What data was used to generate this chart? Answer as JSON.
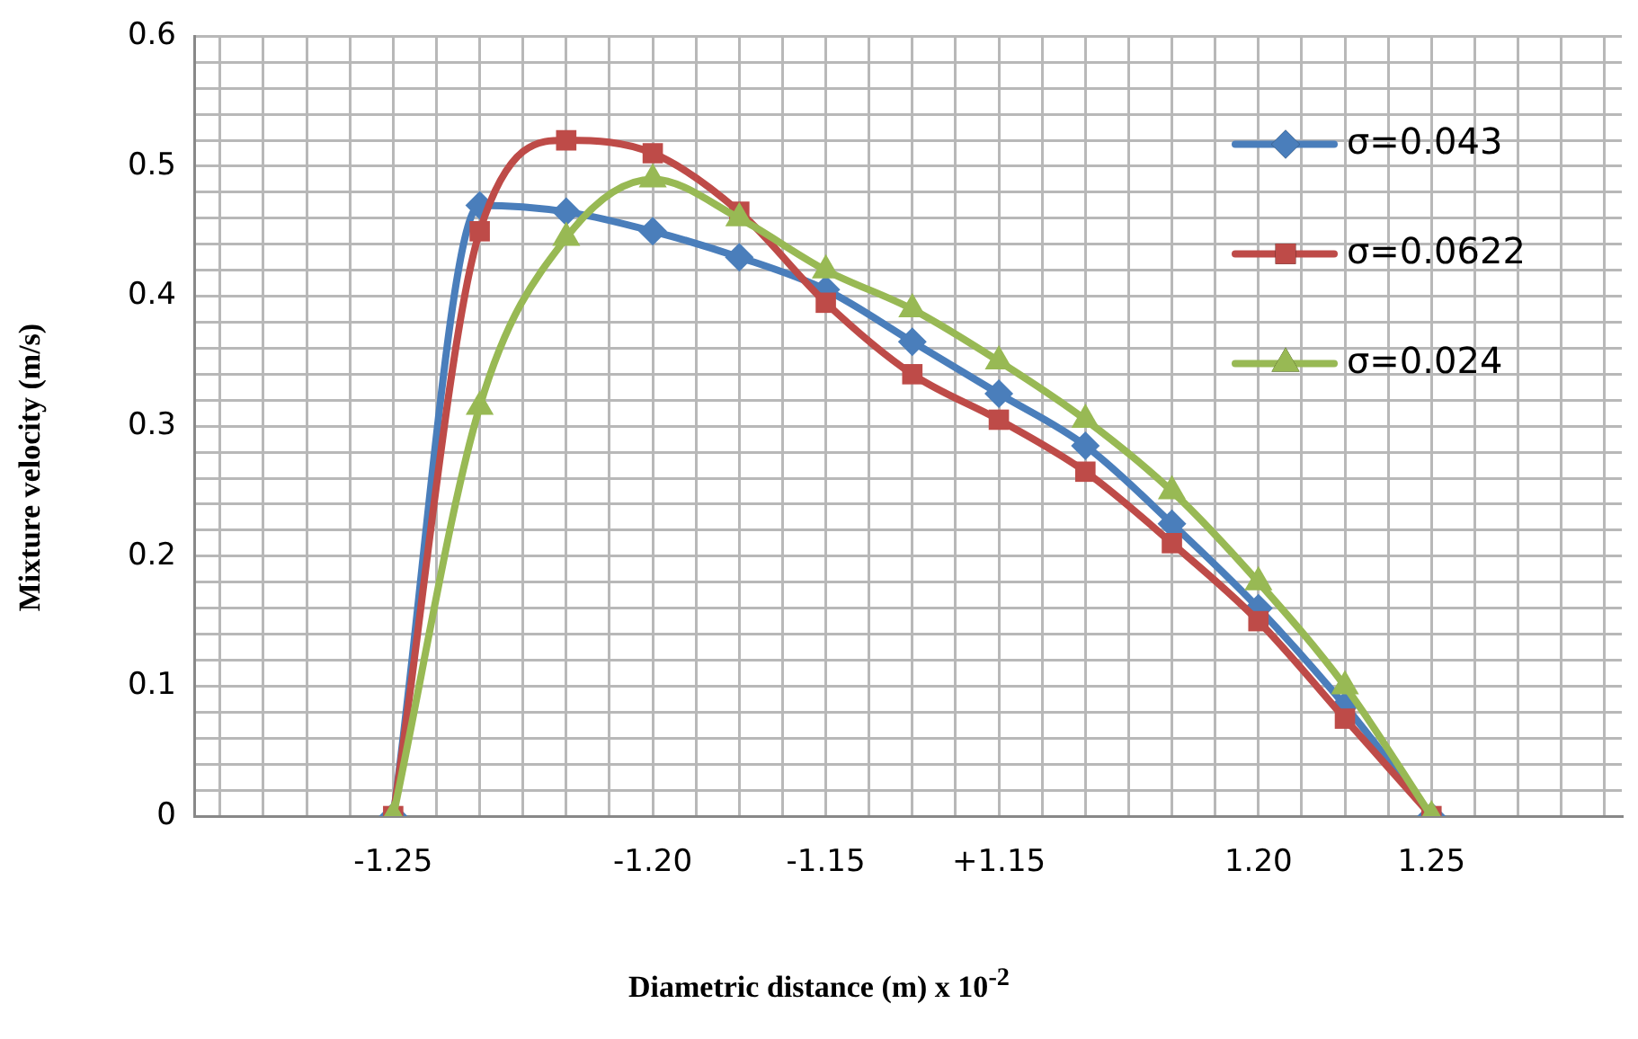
{
  "chart_data": {
    "type": "line",
    "xlabel": "Diametric distance (m)  x 10$^{-2}$",
    "ylabel": "Mixture velocity (m/s)",
    "categories": [
      "-1.25",
      null,
      null,
      "-1.20",
      null,
      "-1.15",
      null,
      "+1.15",
      null,
      null,
      "1.20",
      null,
      "1.25"
    ],
    "series": [
      {
        "name": "σ=0.043",
        "color": "#4a7ebb",
        "marker": "diamond",
        "values": [
          0,
          0.47,
          0.465,
          0.45,
          0.43,
          0.405,
          0.365,
          0.325,
          0.285,
          0.225,
          0.16,
          0.085,
          0
        ]
      },
      {
        "name": "σ=0.0622",
        "color": "#be4b48",
        "marker": "square",
        "values": [
          0,
          0.45,
          0.52,
          0.51,
          0.465,
          0.395,
          0.34,
          0.305,
          0.265,
          0.21,
          0.15,
          0.075,
          0
        ]
      },
      {
        "name": "σ=0.024",
        "color": "#98b954",
        "marker": "triangle",
        "values": [
          0,
          0.315,
          0.445,
          0.49,
          0.46,
          0.42,
          0.39,
          0.35,
          0.305,
          0.25,
          0.18,
          0.1,
          0
        ]
      }
    ],
    "ylim": [
      0,
      0.6
    ],
    "yticks": [
      0,
      {
        "value": 0.02,
        "label": null
      },
      {
        "value": 0.04,
        "label": null
      },
      {
        "value": 0.06,
        "label": null
      },
      {
        "value": 0.08,
        "label": null
      },
      0.1,
      {
        "value": 0.12,
        "label": null
      },
      {
        "value": 0.14,
        "label": null
      },
      {
        "value": 0.16,
        "label": null
      },
      {
        "value": 0.18,
        "label": null
      },
      0.2,
      {
        "value": 0.22,
        "label": null
      },
      {
        "value": 0.24,
        "label": null
      },
      {
        "value": 0.26,
        "label": null
      },
      {
        "value": 0.28,
        "label": null
      },
      0.3,
      {
        "value": 0.32,
        "label": null
      },
      {
        "value": 0.34,
        "label": null
      },
      {
        "value": 0.36,
        "label": null
      },
      {
        "value": 0.38,
        "label": null
      },
      0.4,
      {
        "value": 0.42,
        "label": null
      },
      {
        "value": 0.44,
        "label": null
      },
      {
        "value": 0.46,
        "label": null
      },
      {
        "value": 0.48,
        "label": null
      },
      0.5,
      {
        "value": 0.52,
        "label": null
      },
      {
        "value": 0.54,
        "label": null
      },
      {
        "value": 0.56,
        "label": null
      },
      {
        "value": 0.58,
        "label": null
      },
      0.6
    ],
    "grid": true,
    "legend": "top right",
    "line_style": "solid"
  }
}
